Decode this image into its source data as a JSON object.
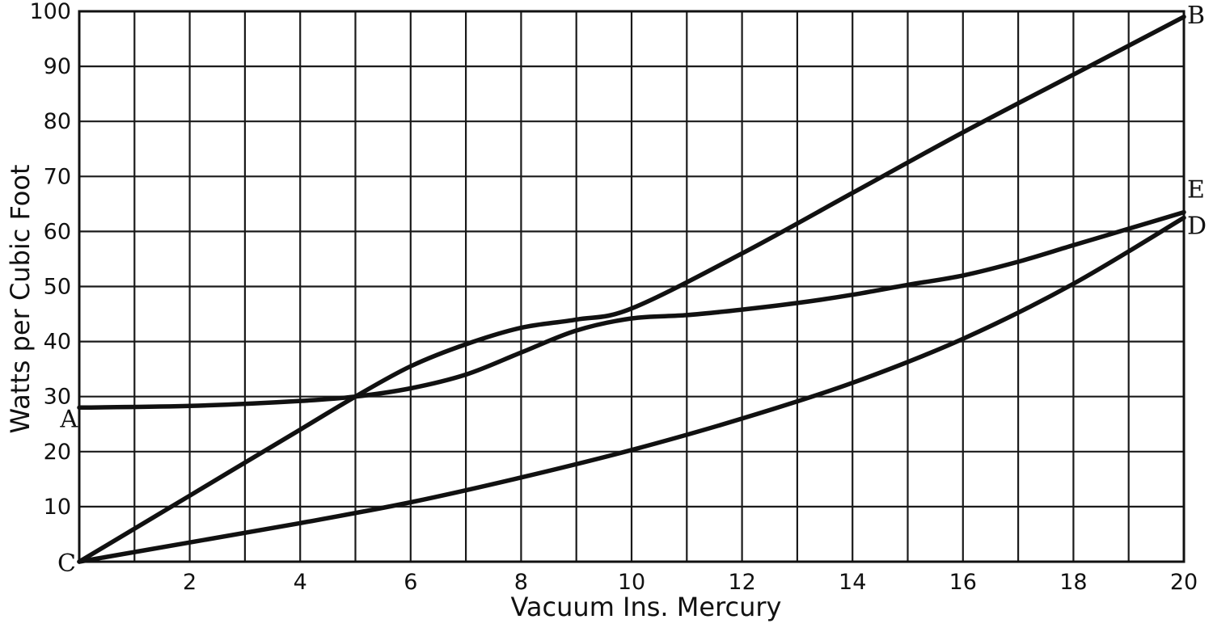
{
  "chart_data": {
    "type": "line",
    "title": "",
    "xlabel": "Vacuum Ins. Mercury",
    "ylabel": "Watts per Cubic Foot",
    "xlim": [
      0,
      20
    ],
    "ylim": [
      0,
      100
    ],
    "grid": true,
    "x_ticks": [
      2,
      4,
      6,
      8,
      10,
      12,
      14,
      16,
      18,
      20
    ],
    "x_tick_labels": [
      "2",
      "4",
      "6",
      "8",
      "10",
      "12",
      "14",
      "16",
      "18",
      "20"
    ],
    "y_ticks": [
      10,
      20,
      30,
      40,
      50,
      60,
      70,
      80,
      90,
      100
    ],
    "y_tick_labels": [
      "10",
      "20",
      "30",
      "40",
      "50",
      "60",
      "70",
      "80",
      "90",
      "100"
    ],
    "labels": {
      "A": "A",
      "B": "B",
      "C": "C",
      "D": "D",
      "E": "E"
    },
    "series": [
      {
        "start_label": "A",
        "end_label": "E",
        "x": [
          0,
          2,
          4,
          5,
          6,
          7,
          8,
          9,
          10,
          11,
          12,
          13,
          14,
          15,
          16,
          17,
          18,
          19,
          20
        ],
        "y": [
          28,
          28.3,
          29.2,
          30,
          31.5,
          34,
          38,
          42,
          44.2,
          44.8,
          45.8,
          47,
          48.5,
          50.3,
          52,
          54.5,
          57.5,
          60.5,
          63.5
        ]
      },
      {
        "start_label": "C",
        "end_label": "B",
        "x": [
          0,
          2,
          4,
          5,
          6,
          7,
          8,
          9,
          10,
          12,
          14,
          16,
          18,
          20
        ],
        "y": [
          0,
          12,
          24,
          30,
          35.5,
          39.5,
          42.5,
          44,
          46,
          56,
          67,
          78,
          88.5,
          99
        ]
      },
      {
        "start_label": "C",
        "end_label": "D",
        "x": [
          0,
          2,
          4,
          6,
          8,
          10,
          12,
          14,
          16,
          18,
          20
        ],
        "y": [
          0,
          3.5,
          7,
          10.8,
          15.3,
          20.3,
          26,
          32.5,
          40.5,
          50.5,
          62.5
        ]
      }
    ]
  }
}
